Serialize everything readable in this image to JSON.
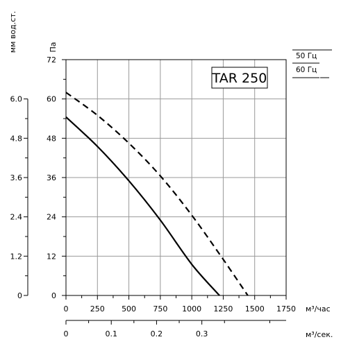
{
  "chart_data": {
    "type": "line",
    "title": "TAR 250",
    "x_axis": {
      "label": "м³/час",
      "range": [
        0,
        1750
      ],
      "ticks": [
        "0",
        "250",
        "500",
        "750",
        "1000",
        "1250",
        "1500",
        "1750"
      ]
    },
    "x2_axis": {
      "label": "м³/сек.",
      "range": [
        0,
        0.4861
      ],
      "ticks": [
        "0",
        "0.1",
        "0.2",
        "0.3"
      ]
    },
    "y_axis": {
      "label": "Па",
      "range": [
        0,
        72
      ],
      "ticks": [
        "0",
        "12",
        "24",
        "36",
        "48",
        "60",
        "72"
      ]
    },
    "y2_axis": {
      "label": "мм вод.ст.",
      "range": [
        0,
        7.2
      ],
      "ticks": [
        "0",
        "1.2",
        "2.4",
        "3.6",
        "4.8",
        "6.0"
      ]
    },
    "grid": true,
    "legend": [
      {
        "name": "50 Гц",
        "style": "solid"
      },
      {
        "name": "60 Гц",
        "style": "dashed"
      }
    ],
    "series": [
      {
        "name": "50 Гц",
        "style": "solid",
        "x": [
          0,
          250,
          500,
          750,
          1000,
          1220
        ],
        "y": [
          54.5,
          45.5,
          35,
          23,
          9.5,
          0
        ]
      },
      {
        "name": "60 Гц",
        "style": "dashed",
        "x": [
          0,
          250,
          500,
          750,
          1000,
          1250,
          1445
        ],
        "y": [
          62,
          55,
          46.5,
          36.5,
          24.5,
          11,
          0
        ]
      }
    ]
  }
}
